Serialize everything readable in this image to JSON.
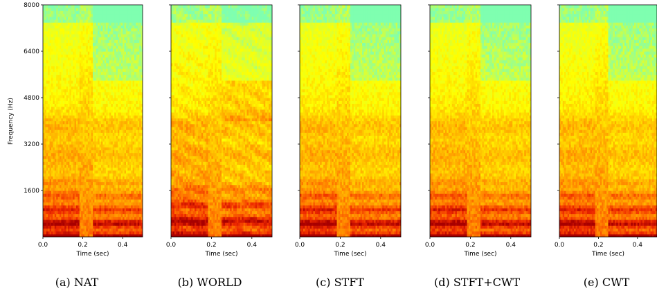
{
  "figure": {
    "y_axis_label": "Frequency (Hz)",
    "x_axis_label": "Time (sec)",
    "y_tick_labels": [
      "1600",
      "3200",
      "4800",
      "6400",
      "8000"
    ],
    "x_tick_labels": [
      "0.0",
      "0.2",
      "0.4"
    ],
    "panels": [
      {
        "caption": "(a) NAT"
      },
      {
        "caption": "(b) WORLD"
      },
      {
        "caption": "(c) STFT"
      },
      {
        "caption": "(d) STFT+CWT"
      },
      {
        "caption": "(e) CWT"
      }
    ],
    "colormap": [
      "#7fffb0",
      "#d8ff38",
      "#ffff00",
      "#ffbf00",
      "#ff7800",
      "#ee2800",
      "#a80000"
    ]
  },
  "chart_data": [
    {
      "type": "heatmap",
      "title": "(a) NAT",
      "xlabel": "Time (sec)",
      "ylabel": "Frequency (Hz)",
      "xlim": [
        0,
        0.5
      ],
      "ylim": [
        0,
        8000
      ],
      "x_ticks": [
        0.0,
        0.2,
        0.4
      ],
      "y_ticks": [
        1600,
        3200,
        4800,
        6400,
        8000
      ]
    },
    {
      "type": "heatmap",
      "title": "(b) WORLD",
      "xlabel": "Time (sec)",
      "xlim": [
        0,
        0.5
      ],
      "ylim": [
        0,
        8000
      ],
      "x_ticks": [
        0.0,
        0.2,
        0.4
      ]
    },
    {
      "type": "heatmap",
      "title": "(c) STFT",
      "xlabel": "Time (sec)",
      "xlim": [
        0,
        0.5
      ],
      "ylim": [
        0,
        8000
      ],
      "x_ticks": [
        0.0,
        0.2,
        0.4
      ]
    },
    {
      "type": "heatmap",
      "title": "(d) STFT+CWT",
      "xlabel": "Time (sec)",
      "xlim": [
        0,
        0.5
      ],
      "ylim": [
        0,
        8000
      ],
      "x_ticks": [
        0.0,
        0.2,
        0.4
      ]
    },
    {
      "type": "heatmap",
      "title": "(e) CWT",
      "xlabel": "Time (sec)",
      "xlim": [
        0,
        0.5
      ],
      "ylim": [
        0,
        8000
      ],
      "x_ticks": [
        0.0,
        0.2,
        0.4
      ]
    }
  ]
}
